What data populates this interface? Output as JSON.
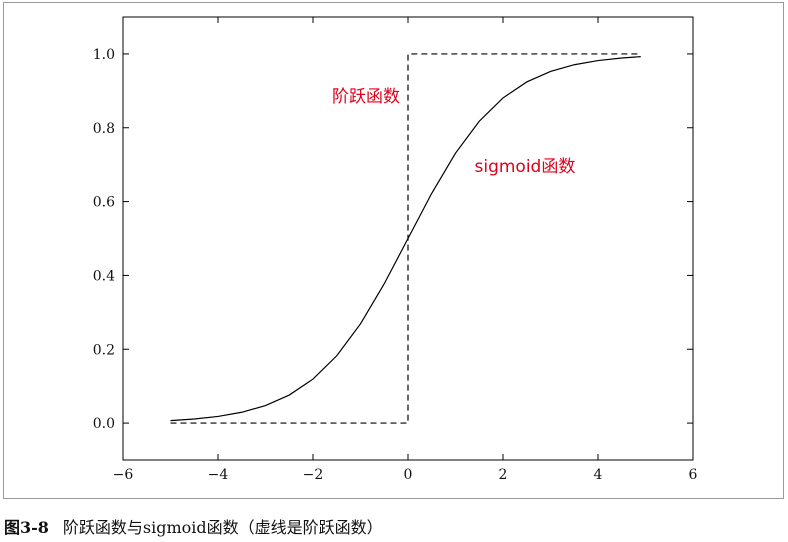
{
  "caption": {
    "figure_number": "图3-8",
    "text": "阶跃函数与sigmoid函数（虚线是阶跃函数）"
  },
  "chart_data": {
    "type": "line",
    "title": "",
    "xlabel": "",
    "ylabel": "",
    "xlim": [
      -6,
      6
    ],
    "ylim": [
      -0.1,
      1.1
    ],
    "xticks": [
      -6,
      -4,
      -2,
      0,
      2,
      4,
      6
    ],
    "xtick_labels": [
      "−6",
      "−4",
      "−2",
      "0",
      "2",
      "4",
      "6"
    ],
    "yticks": [
      0.0,
      0.2,
      0.4,
      0.6,
      0.8,
      1.0
    ],
    "ytick_labels": [
      "0.0",
      "0.2",
      "0.4",
      "0.6",
      "0.8",
      "1.0"
    ],
    "grid": false,
    "series": [
      {
        "style": "dashed",
        "color": "#000000",
        "x": [
          -5.0,
          -0.1,
          -0.1,
          0.0,
          0.0,
          4.9
        ],
        "y": [
          0.0,
          0.0,
          0.0,
          0.0,
          1.0,
          1.0
        ]
      },
      {
        "style": "solid",
        "color": "#000000",
        "x": [
          -5.0,
          -4.5,
          -4.0,
          -3.5,
          -3.0,
          -2.5,
          -2.0,
          -1.5,
          -1.0,
          -0.5,
          0.0,
          0.5,
          1.0,
          1.5,
          2.0,
          2.5,
          3.0,
          3.5,
          4.0,
          4.5,
          4.9
        ],
        "y": [
          0.0067,
          0.011,
          0.018,
          0.0293,
          0.0474,
          0.0759,
          0.1192,
          0.1824,
          0.2689,
          0.3775,
          0.5,
          0.6225,
          0.7311,
          0.8176,
          0.8808,
          0.9241,
          0.9526,
          0.9707,
          0.982,
          0.989,
          0.9926
        ]
      }
    ],
    "annotations": [
      {
        "text": "阶跃函数",
        "x": -1.6,
        "y": 0.87,
        "color": "#e0001b"
      },
      {
        "text": "sigmoid函数",
        "x": 1.4,
        "y": 0.68,
        "color": "#e0001b"
      }
    ]
  }
}
